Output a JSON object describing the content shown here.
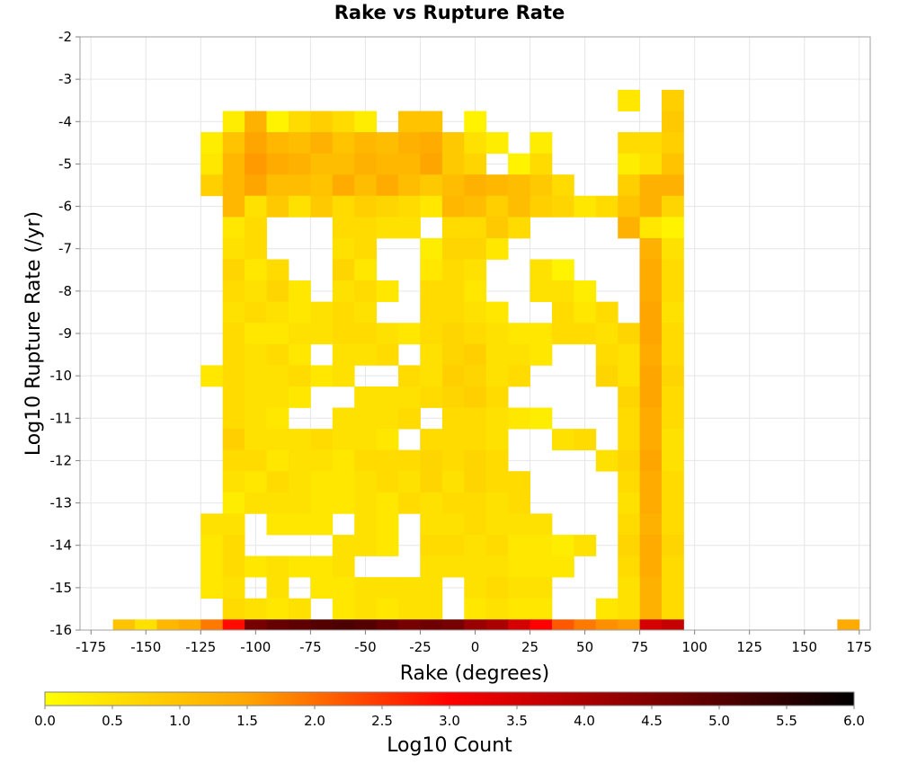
{
  "chart_data": {
    "type": "heatmap",
    "title": "Rake vs Rupture Rate",
    "xlabel": "Rake (degrees)",
    "ylabel": "Log10 Rupture Rate (/yr)",
    "colorbar_label": "Log10 Count",
    "xlim": [
      -180,
      180
    ],
    "ylim": [
      -16,
      -2
    ],
    "x_bin_size": 10,
    "y_bin_size": 0.5,
    "x_ticks": [
      -175,
      -150,
      -125,
      -100,
      -75,
      -50,
      -25,
      0,
      25,
      50,
      75,
      100,
      125,
      150,
      175
    ],
    "y_ticks": [
      -2,
      -3,
      -4,
      -5,
      -6,
      -7,
      -8,
      -9,
      -10,
      -11,
      -12,
      -13,
      -14,
      -15,
      -16
    ],
    "colorbar_ticks": [
      "0.0",
      "0.5",
      "1.0",
      "1.5",
      "2.0",
      "2.5",
      "3.0",
      "3.5",
      "4.0",
      "4.5",
      "5.0",
      "5.5",
      "6.0"
    ],
    "colorbar_range": [
      0,
      6
    ],
    "colorscale": [
      "#ffff00",
      "#ffa500",
      "#ff0000",
      "#800000",
      "#000000"
    ],
    "grid": true,
    "rake_bins": [
      -160,
      -150,
      -140,
      -130,
      -120,
      -110,
      -100,
      -90,
      -80,
      -70,
      -60,
      -50,
      -40,
      -30,
      -20,
      -10,
      0,
      10,
      20,
      30,
      40,
      50,
      60,
      70,
      80,
      90,
      170
    ],
    "rate_rows": [
      {
        "rate": -3.5,
        "values": [
          null,
          null,
          null,
          null,
          null,
          null,
          null,
          null,
          null,
          null,
          null,
          null,
          null,
          null,
          null,
          null,
          null,
          null,
          null,
          null,
          null,
          null,
          null,
          0.4,
          null,
          0.8,
          null
        ]
      },
      {
        "rate": -4.0,
        "values": [
          null,
          null,
          null,
          null,
          null,
          0.3,
          1.3,
          0.2,
          0.6,
          0.8,
          0.6,
          0.3,
          null,
          1.0,
          1.0,
          null,
          0.2,
          null,
          null,
          null,
          null,
          null,
          null,
          null,
          null,
          0.9,
          null
        ]
      },
      {
        "rate": -4.5,
        "values": [
          null,
          null,
          null,
          null,
          0.3,
          1.0,
          1.5,
          1.2,
          1.1,
          1.3,
          1.0,
          1.2,
          1.1,
          1.3,
          1.4,
          0.9,
          0.5,
          0.3,
          null,
          0.3,
          null,
          null,
          null,
          0.6,
          0.6,
          0.8,
          null
        ]
      },
      {
        "rate": -5.0,
        "values": [
          null,
          null,
          null,
          null,
          0.4,
          1.2,
          1.6,
          1.4,
          1.3,
          1.1,
          1.1,
          1.3,
          1.2,
          1.2,
          1.5,
          0.9,
          0.7,
          null,
          0.2,
          0.6,
          null,
          null,
          null,
          0.3,
          0.5,
          1.0,
          null
        ]
      },
      {
        "rate": -5.5,
        "values": [
          null,
          null,
          null,
          null,
          0.8,
          1.2,
          1.5,
          1.1,
          1.1,
          1.0,
          1.4,
          1.1,
          1.4,
          1.1,
          0.9,
          1.1,
          1.3,
          1.2,
          1.1,
          0.9,
          0.6,
          null,
          null,
          0.8,
          1.3,
          1.3,
          null
        ]
      },
      {
        "rate": -6.0,
        "values": [
          null,
          null,
          null,
          null,
          null,
          1.2,
          0.5,
          0.9,
          0.5,
          0.9,
          0.6,
          0.8,
          0.7,
          0.6,
          0.4,
          1.2,
          1.1,
          0.8,
          1.1,
          0.8,
          0.7,
          0.4,
          0.6,
          1.0,
          1.3,
          0.7,
          null
        ]
      },
      {
        "rate": -6.5,
        "values": [
          null,
          null,
          null,
          null,
          null,
          0.4,
          0.6,
          null,
          null,
          null,
          0.6,
          0.6,
          0.5,
          0.5,
          null,
          0.6,
          0.6,
          0.9,
          0.6,
          null,
          null,
          null,
          null,
          1.3,
          0.4,
          0.2,
          null
        ]
      },
      {
        "rate": -7.0,
        "values": [
          null,
          null,
          null,
          null,
          null,
          0.5,
          0.6,
          null,
          null,
          null,
          0.5,
          0.6,
          null,
          null,
          0.3,
          0.7,
          0.7,
          0.4,
          null,
          null,
          null,
          null,
          null,
          null,
          1.3,
          0.5,
          null
        ]
      },
      {
        "rate": -7.5,
        "values": [
          null,
          null,
          null,
          null,
          null,
          0.7,
          0.4,
          0.6,
          null,
          null,
          0.7,
          0.4,
          null,
          null,
          0.4,
          0.6,
          0.5,
          null,
          null,
          0.5,
          0.2,
          null,
          null,
          null,
          1.4,
          0.6,
          null
        ]
      },
      {
        "rate": -8.0,
        "values": [
          null,
          null,
          null,
          null,
          null,
          0.6,
          0.5,
          0.7,
          0.4,
          null,
          0.5,
          0.6,
          0.4,
          null,
          0.6,
          0.6,
          0.4,
          null,
          null,
          0.5,
          0.5,
          0.3,
          null,
          null,
          1.4,
          0.6,
          null
        ]
      },
      {
        "rate": -8.5,
        "values": [
          null,
          null,
          null,
          null,
          null,
          0.5,
          0.6,
          0.5,
          0.4,
          0.5,
          0.6,
          0.5,
          null,
          null,
          0.6,
          0.6,
          0.5,
          0.4,
          null,
          null,
          0.6,
          0.4,
          0.6,
          null,
          1.5,
          0.5,
          null
        ]
      },
      {
        "rate": -9.0,
        "values": [
          null,
          null,
          null,
          null,
          null,
          0.6,
          0.4,
          0.4,
          0.5,
          0.5,
          0.6,
          0.6,
          0.5,
          0.4,
          0.6,
          0.7,
          0.6,
          0.5,
          0.4,
          0.4,
          0.6,
          0.6,
          0.5,
          0.7,
          1.5,
          0.6,
          null
        ]
      },
      {
        "rate": -9.5,
        "values": [
          null,
          null,
          null,
          null,
          null,
          0.6,
          0.5,
          0.6,
          0.4,
          null,
          0.5,
          0.5,
          0.6,
          null,
          0.5,
          0.7,
          0.8,
          0.5,
          0.5,
          0.4,
          null,
          null,
          0.6,
          0.5,
          1.4,
          0.6,
          null
        ]
      },
      {
        "rate": -10.0,
        "values": [
          null,
          null,
          null,
          null,
          0.4,
          0.6,
          0.5,
          0.5,
          0.6,
          0.4,
          0.5,
          null,
          null,
          0.6,
          0.5,
          0.8,
          0.7,
          0.5,
          0.6,
          null,
          null,
          null,
          0.7,
          0.5,
          1.5,
          0.7,
          null
        ]
      },
      {
        "rate": -10.5,
        "values": [
          null,
          null,
          null,
          null,
          null,
          0.6,
          0.5,
          0.5,
          0.4,
          null,
          null,
          0.5,
          0.5,
          0.5,
          0.6,
          0.7,
          0.8,
          0.6,
          null,
          null,
          null,
          null,
          null,
          0.7,
          1.5,
          0.6,
          null
        ]
      },
      {
        "rate": -11.0,
        "values": [
          null,
          null,
          null,
          null,
          null,
          0.6,
          0.5,
          0.4,
          null,
          null,
          0.5,
          0.5,
          0.5,
          0.6,
          null,
          0.6,
          0.6,
          0.5,
          0.4,
          0.3,
          null,
          null,
          null,
          0.6,
          1.4,
          0.6,
          null
        ]
      },
      {
        "rate": -11.5,
        "values": [
          null,
          null,
          null,
          null,
          null,
          0.8,
          0.5,
          0.5,
          0.5,
          0.6,
          0.5,
          0.5,
          0.4,
          null,
          0.6,
          0.6,
          0.6,
          0.5,
          null,
          null,
          0.5,
          0.6,
          null,
          0.6,
          1.4,
          0.5,
          null
        ]
      },
      {
        "rate": -12.0,
        "values": [
          null,
          null,
          null,
          null,
          null,
          0.6,
          0.6,
          0.4,
          0.5,
          0.5,
          0.4,
          0.6,
          0.6,
          0.6,
          0.7,
          0.6,
          0.7,
          0.6,
          null,
          null,
          null,
          null,
          0.5,
          0.7,
          1.5,
          0.5,
          null
        ]
      },
      {
        "rate": -12.5,
        "values": [
          null,
          null,
          null,
          null,
          null,
          0.5,
          0.4,
          0.6,
          0.5,
          0.4,
          0.4,
          0.5,
          0.6,
          0.5,
          0.7,
          0.5,
          0.7,
          0.6,
          0.6,
          null,
          null,
          null,
          null,
          0.6,
          1.4,
          0.6,
          null
        ]
      },
      {
        "rate": -13.0,
        "values": [
          null,
          null,
          null,
          null,
          null,
          0.3,
          0.5,
          0.5,
          0.5,
          0.4,
          0.4,
          0.5,
          0.4,
          0.6,
          0.5,
          0.6,
          0.6,
          0.5,
          0.6,
          null,
          null,
          null,
          null,
          0.5,
          1.4,
          0.6,
          null
        ]
      },
      {
        "rate": -13.5,
        "values": [
          null,
          null,
          null,
          null,
          0.5,
          0.5,
          null,
          0.4,
          0.4,
          0.4,
          null,
          0.5,
          0.4,
          null,
          0.5,
          0.5,
          0.6,
          0.5,
          0.5,
          0.5,
          null,
          null,
          null,
          0.6,
          1.3,
          0.6,
          null
        ]
      },
      {
        "rate": -14.0,
        "values": [
          null,
          null,
          null,
          null,
          0.4,
          0.6,
          null,
          null,
          null,
          null,
          0.5,
          0.5,
          0.4,
          null,
          0.6,
          0.6,
          0.5,
          0.6,
          0.4,
          0.4,
          0.3,
          0.5,
          null,
          0.7,
          1.4,
          0.7,
          null
        ]
      },
      {
        "rate": -14.5,
        "values": [
          null,
          null,
          null,
          null,
          0.4,
          0.6,
          0.4,
          0.5,
          0.4,
          0.4,
          0.5,
          null,
          null,
          null,
          0.5,
          0.5,
          0.5,
          0.5,
          0.4,
          0.4,
          0.4,
          null,
          null,
          0.6,
          1.4,
          0.6,
          null
        ]
      },
      {
        "rate": -15.0,
        "values": [
          null,
          null,
          null,
          null,
          0.4,
          0.5,
          null,
          0.5,
          null,
          0.4,
          0.4,
          0.5,
          0.5,
          0.5,
          0.5,
          null,
          0.5,
          0.6,
          0.5,
          0.5,
          null,
          null,
          null,
          0.5,
          1.3,
          0.6,
          null
        ]
      },
      {
        "rate": -15.5,
        "values": [
          null,
          null,
          null,
          null,
          null,
          0.6,
          0.5,
          0.4,
          0.5,
          null,
          0.4,
          0.5,
          0.4,
          0.5,
          0.5,
          null,
          0.4,
          0.5,
          0.4,
          0.4,
          null,
          null,
          0.4,
          0.5,
          1.3,
          0.6,
          null
        ]
      },
      {
        "rate": -16.0,
        "values": [
          1.0,
          0.5,
          1.2,
          1.4,
          1.9,
          2.9,
          4.6,
          4.8,
          4.9,
          5.0,
          5.1,
          5.0,
          4.8,
          4.6,
          4.7,
          4.6,
          4.2,
          4.0,
          3.5,
          3.0,
          2.2,
          1.9,
          1.7,
          1.6,
          3.5,
          3.7,
          1.4
        ]
      }
    ]
  }
}
